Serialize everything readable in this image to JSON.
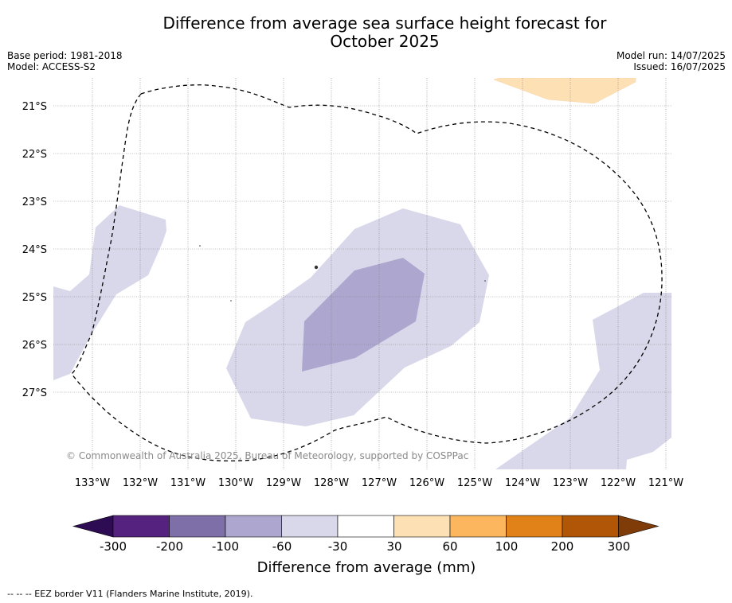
{
  "title_line1": "Difference from average sea surface height forecast for",
  "title_line2": "October 2025",
  "base_period": "Base period: 1981-2018",
  "model": "Model: ACCESS-S2",
  "model_run": "Model run: 14/07/2025",
  "issued": "Issued: 16/07/2025",
  "copyright": "© Commonwealth of Australia 2025, Bureau of Meteorology, supported by COSPPac",
  "lat_labels": [
    "21°S",
    "22°S",
    "23°S",
    "24°S",
    "25°S",
    "26°S",
    "27°S"
  ],
  "lon_labels": [
    "133°W",
    "132°W",
    "131°W",
    "130°W",
    "129°W",
    "128°W",
    "127°W",
    "126°W",
    "125°W",
    "124°W",
    "123°W",
    "122°W",
    "121°W"
  ],
  "colorbar": {
    "colors": [
      "#2d0c53",
      "#55237f",
      "#7f6fa9",
      "#ada7cf",
      "#d8d8ea",
      "#ffffff",
      "#fee0b5",
      "#fcb65d",
      "#e08218",
      "#b15607",
      "#7f3b08"
    ],
    "tick_labels": [
      "-300",
      "-200",
      "-100",
      "-60",
      "-30",
      "30",
      "60",
      "100",
      "200",
      "300"
    ],
    "label": "Difference from average (mm)"
  },
  "legend_note": "-- -- -- EEZ border V11 (Flanders Marine Institute, 2019)."
}
